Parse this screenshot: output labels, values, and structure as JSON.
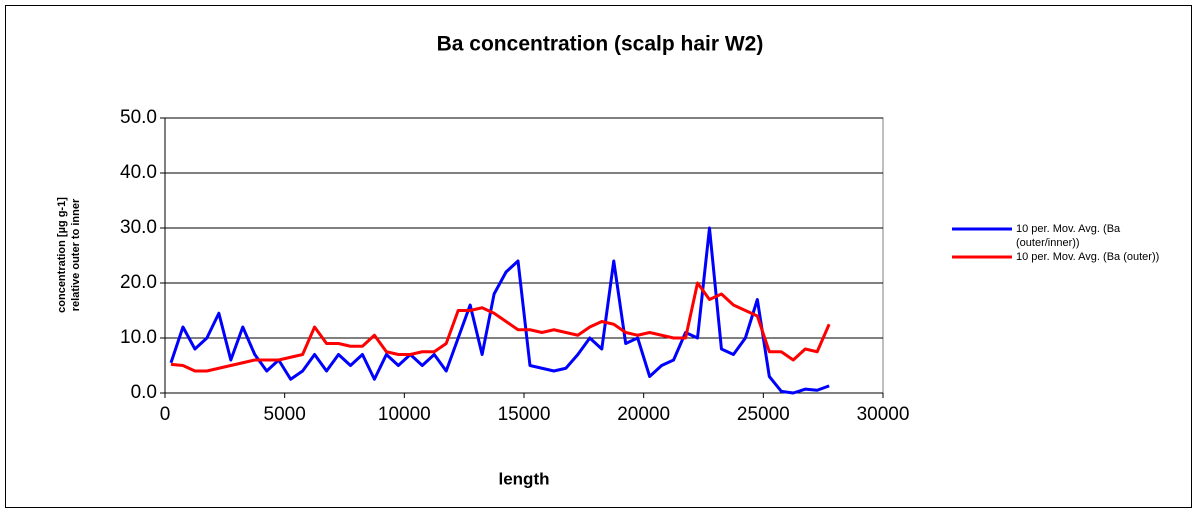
{
  "chart_data": {
    "type": "line",
    "title": "Ba concentration (scalp hair W2)",
    "xlabel": "length",
    "ylabel": [
      "concentration [µg g-1]",
      "relative outer to inner"
    ],
    "x": [
      250,
      750,
      1250,
      1750,
      2250,
      2750,
      3250,
      3750,
      4250,
      4750,
      5250,
      5750,
      6250,
      6750,
      7250,
      7750,
      8250,
      8750,
      9250,
      9750,
      10250,
      10750,
      11250,
      11750,
      12250,
      12750,
      13250,
      13750,
      14250,
      14750,
      15250,
      15750,
      16250,
      16750,
      17250,
      17750,
      18250,
      18750,
      19250,
      19750,
      20250,
      20750,
      21250,
      21750,
      22250,
      22750,
      23250,
      23750,
      24250,
      24750,
      25250,
      25750,
      26250,
      26750,
      27250,
      27750
    ],
    "series": [
      {
        "name": "10 per. Mov. Avg. (Ba (outer/inner))",
        "color": "#0000ff",
        "values": [
          5.5,
          12,
          8,
          10,
          14.5,
          6,
          12,
          7,
          4,
          6,
          2.5,
          4,
          7,
          4,
          7,
          5,
          7,
          2.5,
          7,
          5,
          7,
          5,
          7,
          4,
          10,
          16,
          7,
          18,
          22,
          24,
          5,
          4.5,
          4,
          4.5,
          7,
          10,
          8,
          24,
          9,
          10,
          3,
          5,
          6,
          11,
          10,
          30,
          8,
          7,
          10,
          17,
          3,
          0.3,
          0,
          0.7,
          0.5,
          1.3
        ]
      },
      {
        "name": "10 per. Mov. Avg. (Ba (outer))",
        "color": "#ff0000",
        "values": [
          5.2,
          5,
          4,
          4,
          4.5,
          5,
          5.5,
          6,
          6,
          6,
          6.5,
          7,
          12,
          9,
          9,
          8.5,
          8.5,
          10.5,
          7.5,
          7,
          7,
          7.5,
          7.5,
          9,
          15,
          15,
          15.5,
          14.5,
          13,
          11.5,
          11.5,
          11,
          11.5,
          11,
          10.5,
          12,
          13,
          12.5,
          11,
          10.5,
          11,
          10.5,
          10,
          10,
          20,
          17,
          18,
          16,
          15,
          14,
          7.5,
          7.5,
          6,
          8,
          7.5,
          12.5
        ]
      }
    ],
    "xlim": [
      0,
      30000
    ],
    "xticks": [
      0,
      5000,
      10000,
      15000,
      20000,
      25000,
      30000
    ],
    "ylim": [
      0,
      50
    ],
    "yticks": [
      {
        "value": 0,
        "label": "0.0"
      },
      {
        "value": 10,
        "label": "10.0"
      },
      {
        "value": 20,
        "label": "20.0"
      },
      {
        "value": 30,
        "label": "30.0"
      },
      {
        "value": 40,
        "label": "40.0"
      },
      {
        "value": 50,
        "label": "50.0"
      }
    ],
    "grid": true,
    "legend": "right"
  }
}
